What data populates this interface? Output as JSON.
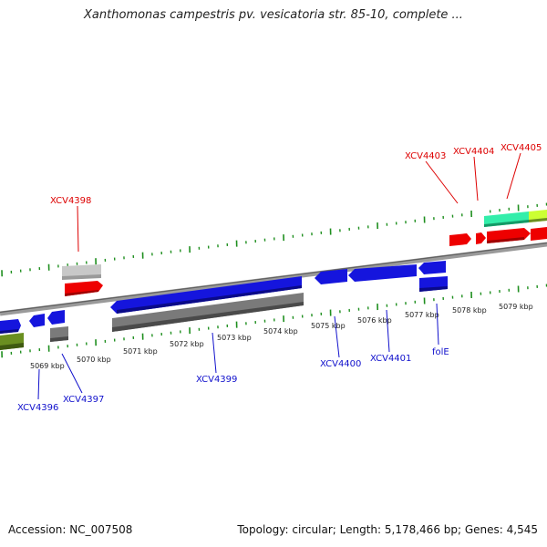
{
  "title": "Xanthomonas campestris pv. vesicatoria str. 85-10, complete ...",
  "footer": {
    "accession": "Accession: NC_007508",
    "summary": "Topology: circular; Length: 5,178,466 bp; Genes: 4,545"
  },
  "colors": {
    "backbone": "#8a8a8a",
    "tick": "#1f8f1f",
    "gene_red": "#ee0000",
    "gene_blue": "#1515dd",
    "gene_gray": "#7a7a7a",
    "gene_lightgray": "#c8c8c8",
    "gene_olive": "#6a8f20",
    "gene_aqua": "#33eeaa",
    "gene_lime": "#ccff33",
    "label_red": "#dd0000",
    "label_blue": "#1010cc"
  },
  "kbp_labels": [
    "5069 kbp",
    "5070 kbp",
    "5071 kbp",
    "5072 kbp",
    "5073 kbp",
    "5074 kbp",
    "5075 kbp",
    "5076 kbp",
    "5077 kbp",
    "5078 kbp",
    "5079 kbp"
  ],
  "gene_labels": {
    "top": [
      "XCV4398",
      "XCV4403",
      "XCV4404",
      "XCV4405"
    ],
    "bottom": [
      "XCV4396",
      "XCV4397",
      "XCV4399",
      "XCV4400",
      "XCV4401",
      "folE"
    ]
  }
}
